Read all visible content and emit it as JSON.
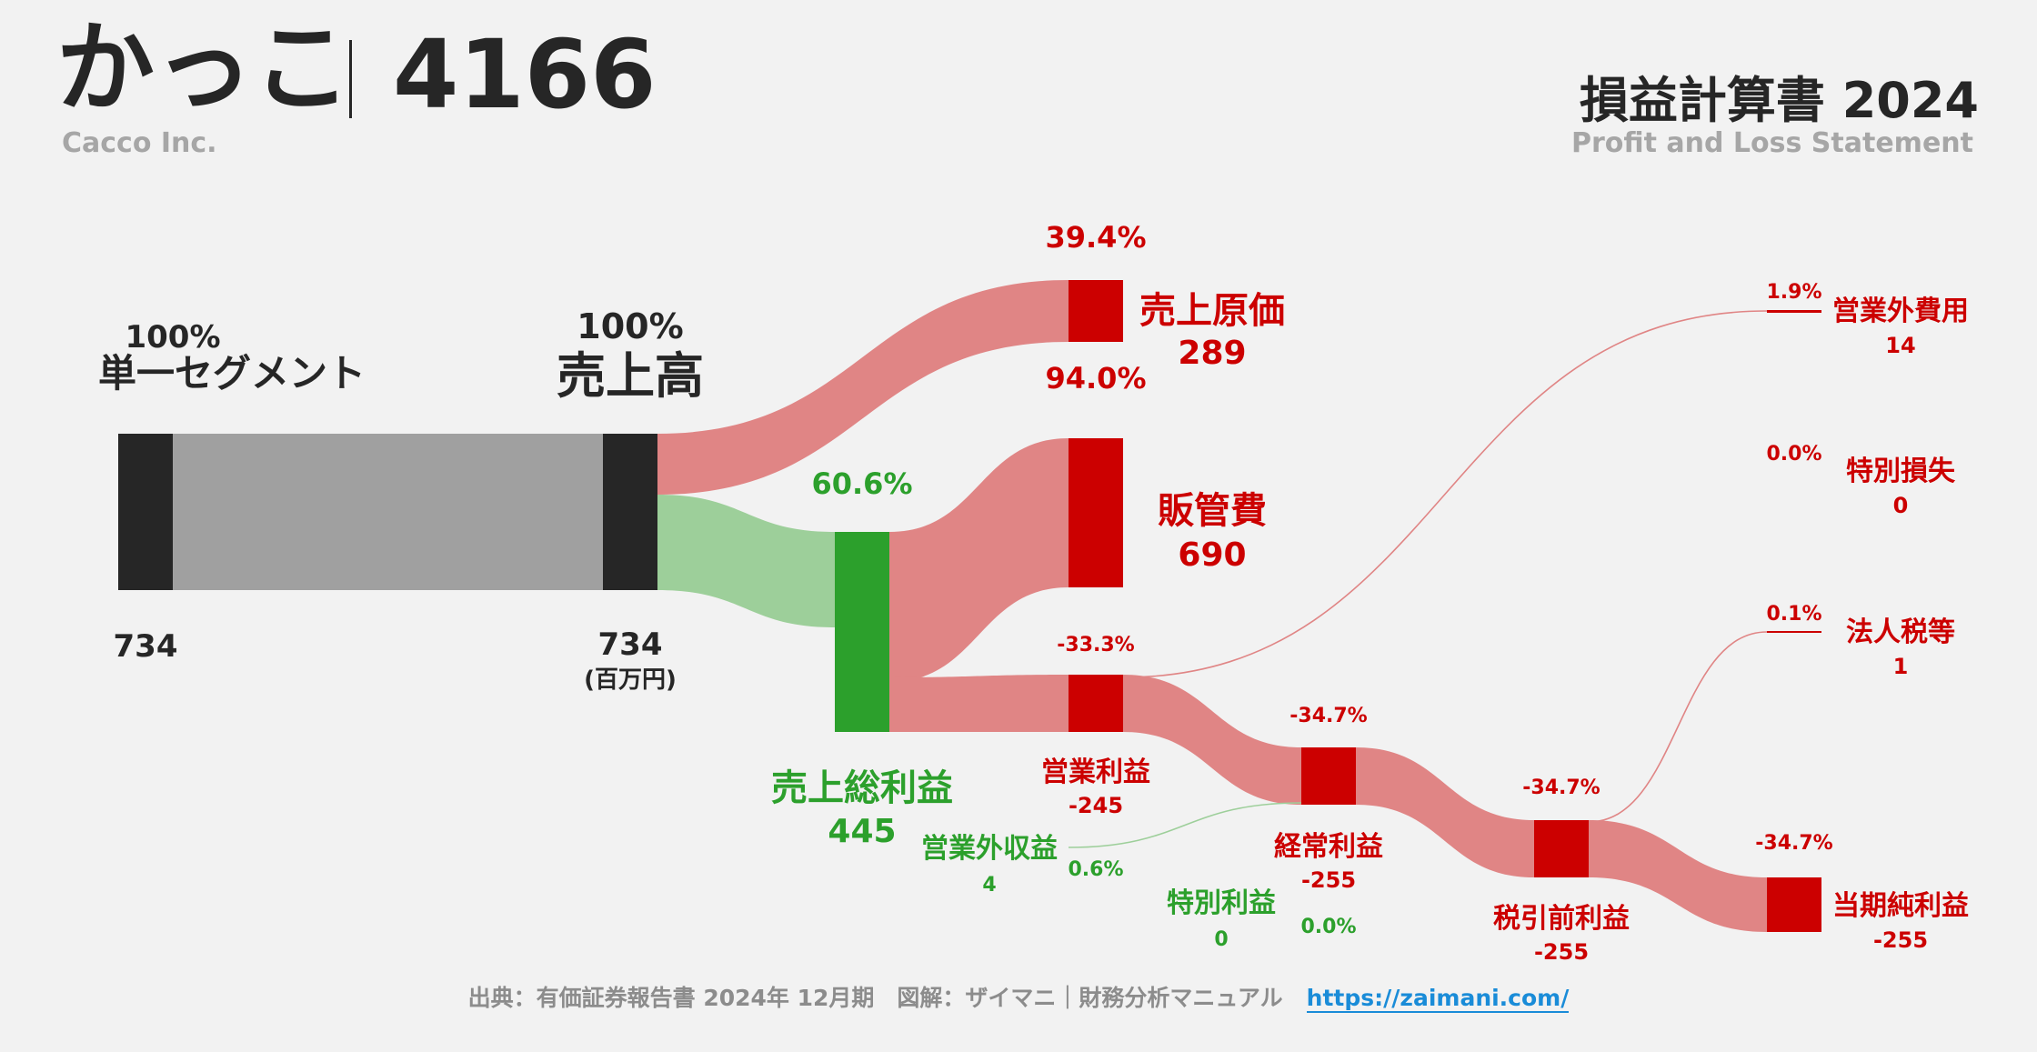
{
  "header": {
    "company_jp": "かっこ",
    "code": "4166",
    "company_en": "Cacco Inc.",
    "report_title": "損益計算書 2024",
    "report_en": "Profit and Loss Statement"
  },
  "footer": {
    "source": "出典：有価証券報告書 2024年 12月期　図解：ザイマニ｜財務分析マニュアル",
    "url": "https://zaimani.com/"
  },
  "colors": {
    "dark": "#262626",
    "gray_flow": "#a0a0a0",
    "red": "#cc0000",
    "red_flow": "#e08585",
    "green": "#2ca02c",
    "green_flow": "#9dcf9a"
  },
  "chart_data": {
    "type": "sankey",
    "unit": "(百万円)",
    "nodes": [
      {
        "id": "segment",
        "label": "単一セグメント",
        "value": "734",
        "pct": "100%"
      },
      {
        "id": "revenue",
        "label": "売上高",
        "value": "734",
        "pct": "100%"
      },
      {
        "id": "cogs",
        "label": "売上原価",
        "value": "289",
        "pct": "39.4%"
      },
      {
        "id": "gross",
        "label": "売上総利益",
        "value": "445",
        "pct": "60.6%"
      },
      {
        "id": "sga",
        "label": "販管費",
        "value": "690",
        "pct": "94.0%"
      },
      {
        "id": "op",
        "label": "営業利益",
        "value": "-245",
        "pct": "-33.3%"
      },
      {
        "id": "nonop_inc",
        "label": "営業外収益",
        "value": "4",
        "pct": "0.6%"
      },
      {
        "id": "nonop_exp",
        "label": "営業外費用",
        "value": "14",
        "pct": "1.9%"
      },
      {
        "id": "ordinary",
        "label": "経常利益",
        "value": "-255",
        "pct": "-34.7%"
      },
      {
        "id": "sp_gain",
        "label": "特別利益",
        "value": "0",
        "pct": "0.0%"
      },
      {
        "id": "sp_loss",
        "label": "特別損失",
        "value": "0",
        "pct": "0.0%"
      },
      {
        "id": "pretax",
        "label": "税引前利益",
        "value": "-255",
        "pct": "-34.7%"
      },
      {
        "id": "tax",
        "label": "法人税等",
        "value": "1",
        "pct": "0.1%"
      },
      {
        "id": "net",
        "label": "当期純利益",
        "value": "-255",
        "pct": "-34.7%"
      }
    ],
    "links": [
      {
        "source": "segment",
        "target": "revenue",
        "value": 734
      },
      {
        "source": "revenue",
        "target": "cogs",
        "value": 289
      },
      {
        "source": "revenue",
        "target": "gross",
        "value": 445
      },
      {
        "source": "gross",
        "target": "sga",
        "value": 690
      },
      {
        "source": "gross",
        "target": "op",
        "value": -245
      },
      {
        "source": "op",
        "target": "ordinary",
        "value": -245
      },
      {
        "source": "op",
        "target": "nonop_exp",
        "value": 14
      },
      {
        "source": "nonop_inc",
        "target": "ordinary",
        "value": 4
      },
      {
        "source": "ordinary",
        "target": "pretax",
        "value": -255
      },
      {
        "source": "pretax",
        "target": "tax",
        "value": 1
      },
      {
        "source": "pretax",
        "target": "net",
        "value": -255
      }
    ]
  }
}
